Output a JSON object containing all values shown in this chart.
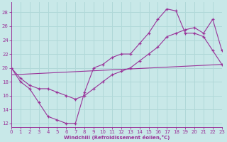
{
  "bg_color": "#c8e8e8",
  "line_color": "#993399",
  "grid_color": "#b0d8d8",
  "xlabel": "Windchill (Refroidissement éolien,°C)",
  "xlim": [
    0,
    23
  ],
  "ylim": [
    11.5,
    29.5
  ],
  "yticks": [
    12,
    14,
    16,
    18,
    20,
    22,
    24,
    26,
    28
  ],
  "xticks": [
    0,
    1,
    2,
    3,
    4,
    5,
    6,
    7,
    8,
    9,
    10,
    11,
    12,
    13,
    14,
    15,
    16,
    17,
    18,
    19,
    20,
    21,
    22,
    23
  ],
  "line1_x": [
    0,
    1,
    2,
    3,
    4,
    5,
    6,
    7,
    8,
    9,
    10,
    11,
    12,
    13,
    14,
    15,
    16,
    17,
    18,
    19,
    20,
    21,
    22,
    23
  ],
  "line1_y": [
    20,
    18,
    17,
    15,
    13,
    12.5,
    12,
    12,
    16.5,
    20,
    20.5,
    21.5,
    22,
    22,
    23.5,
    25,
    27,
    28.5,
    28.2,
    25,
    25,
    24.5,
    22.5,
    20.5
  ],
  "line2_x": [
    0,
    1,
    2,
    3,
    4,
    5,
    6,
    7,
    8,
    9,
    10,
    11,
    12,
    13,
    14,
    15,
    16,
    17,
    18,
    19,
    20,
    21,
    22,
    23
  ],
  "line2_y": [
    20,
    18.5,
    17.5,
    17,
    17,
    16.5,
    16,
    15.5,
    16,
    17,
    18,
    19,
    19.5,
    20,
    21,
    22,
    23,
    24.5,
    25,
    25.5,
    25.8,
    25,
    27,
    22.5
  ],
  "line3_x": [
    0,
    23
  ],
  "line3_y": [
    19.0,
    20.5
  ]
}
